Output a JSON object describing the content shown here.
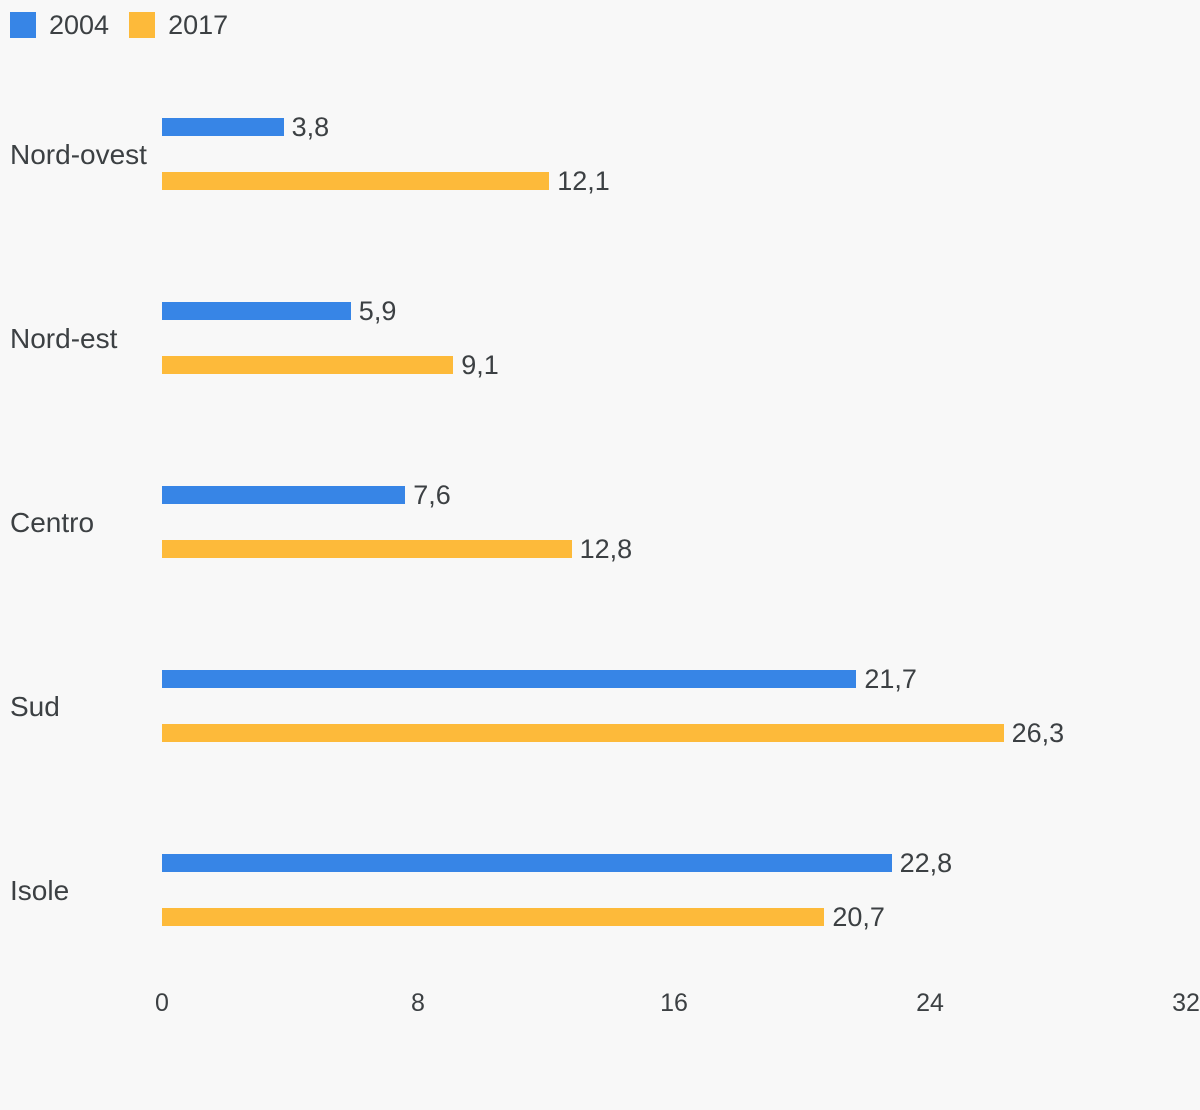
{
  "legend": {
    "items": [
      {
        "label": "2004",
        "color": "#3785e6"
      },
      {
        "label": "2017",
        "color": "#fdba3a"
      }
    ]
  },
  "chart_data": {
    "type": "bar",
    "orientation": "horizontal",
    "title": "",
    "categories": [
      "Nord-ovest",
      "Nord-est",
      "Centro",
      "Sud",
      "Isole"
    ],
    "series": [
      {
        "name": "2004",
        "color": "#3785e6",
        "values": [
          3.8,
          5.9,
          7.6,
          21.7,
          22.8
        ],
        "labels": [
          "3,8",
          "5,9",
          "7,6",
          "21,7",
          "22,8"
        ]
      },
      {
        "name": "2017",
        "color": "#fdba3a",
        "values": [
          12.1,
          9.1,
          12.8,
          26.3,
          20.7
        ],
        "labels": [
          "12,1",
          "9,1",
          "12,8",
          "26,3",
          "20,7"
        ]
      }
    ],
    "xlim": [
      0,
      32
    ],
    "x_ticks": [
      0,
      8,
      16,
      24,
      32
    ],
    "x_tick_labels": [
      "0",
      "8",
      "16",
      "24",
      "32"
    ],
    "grid": false,
    "legend_position": "top-left",
    "value_label_format": "decimal-comma"
  },
  "colors": {
    "background": "#f8f8f8",
    "text": "#3c4043"
  }
}
